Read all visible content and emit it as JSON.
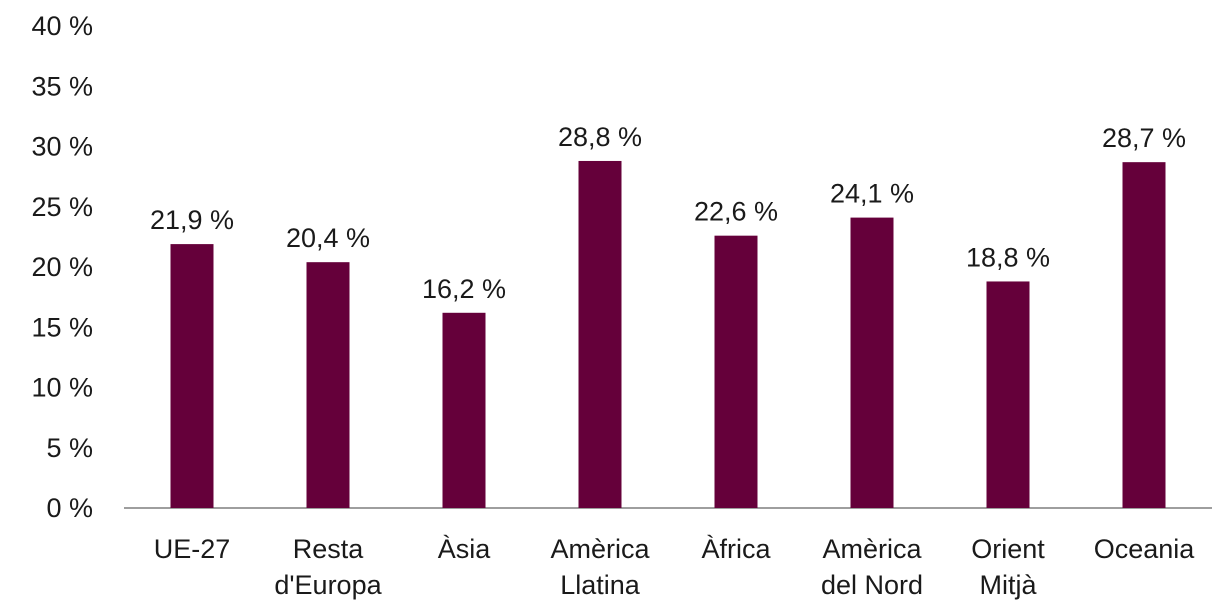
{
  "chart_data": {
    "type": "bar",
    "title": "",
    "xlabel": "",
    "ylabel": "",
    "ylim": [
      0,
      40
    ],
    "yticks": [
      0,
      5,
      10,
      15,
      20,
      25,
      30,
      35,
      40
    ],
    "ytick_labels": [
      "0 %",
      "5 %",
      "10 %",
      "15 %",
      "20 %",
      "25 %",
      "30 %",
      "35 %",
      "40 %"
    ],
    "grid": false,
    "legend": "none",
    "bar_color": "#65003a",
    "categories": [
      [
        "UE-27"
      ],
      [
        "Resta",
        "d'Europa"
      ],
      [
        "Àsia"
      ],
      [
        "Amèrica",
        "Llatina"
      ],
      [
        "Àfrica"
      ],
      [
        "Amèrica",
        "del Nord"
      ],
      [
        "Orient",
        "Mitjà"
      ],
      [
        "Oceania"
      ]
    ],
    "values": [
      21.9,
      20.4,
      16.2,
      28.8,
      22.6,
      24.1,
      18.8,
      28.7
    ],
    "value_labels": [
      "21,9 %",
      "20,4 %",
      "16,2 %",
      "28,8 %",
      "22,6 %",
      "24,1 %",
      "18,8 %",
      "28,7 %"
    ]
  }
}
